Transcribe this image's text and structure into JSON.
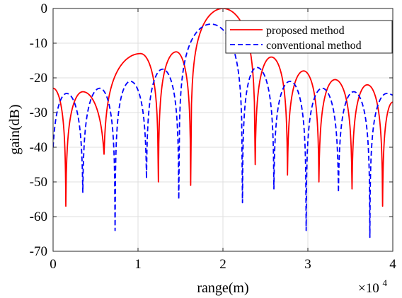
{
  "chart_data": {
    "type": "line",
    "title": "",
    "xlabel": "range(m)",
    "ylabel": "gain(dB)",
    "x_multiplier_label": {
      "base": "×10",
      "exponent": "4"
    },
    "xlim": [
      0,
      40000
    ],
    "ylim": [
      -70,
      0
    ],
    "x_ticks": [
      0,
      10000,
      20000,
      30000,
      40000
    ],
    "x_tick_labels": [
      "0",
      "1",
      "2",
      "3",
      "4"
    ],
    "y_ticks": [
      0,
      -10,
      -20,
      -30,
      -40,
      -50,
      -60,
      -70
    ],
    "y_tick_labels": [
      "0",
      "-10",
      "-20",
      "-30",
      "-40",
      "-50",
      "-60",
      "-70"
    ],
    "grid": true,
    "legend_position": "top-right",
    "series": [
      {
        "name": "proposed method",
        "color": "#ff0000",
        "style": "solid",
        "lobes": [
          {
            "x0": 0,
            "x1": 1500,
            "peak_x": 0,
            "peak": -23,
            "left_end": -23,
            "right_end": -57
          },
          {
            "x0": 1500,
            "x1": 6000,
            "peak_x": 3500,
            "peak": -24,
            "left_end": -57,
            "right_end": -42
          },
          {
            "x0": 6000,
            "x1": 12400,
            "peak_x": 10300,
            "peak": -13,
            "left_end": -42,
            "right_end": -50
          },
          {
            "x0": 12400,
            "x1": 16200,
            "peak_x": 14500,
            "peak": -12.5,
            "left_end": -50,
            "right_end": -51
          },
          {
            "x0": 16200,
            "x1": 23800,
            "peak_x": 20000,
            "peak": 0,
            "left_end": -51,
            "right_end": -45
          },
          {
            "x0": 23800,
            "x1": 27600,
            "peak_x": 25700,
            "peak": -14,
            "left_end": -45,
            "right_end": -48
          },
          {
            "x0": 27600,
            "x1": 31300,
            "peak_x": 29500,
            "peak": -18,
            "left_end": -48,
            "right_end": -50
          },
          {
            "x0": 31300,
            "x1": 35200,
            "peak_x": 33200,
            "peak": -20.5,
            "left_end": -50,
            "right_end": -52
          },
          {
            "x0": 35200,
            "x1": 38800,
            "peak_x": 37000,
            "peak": -22,
            "left_end": -52,
            "right_end": -57
          },
          {
            "x0": 38800,
            "x1": 40000,
            "peak_x": 40000,
            "peak": -27,
            "left_end": -57,
            "right_end": -27
          }
        ]
      },
      {
        "name": "conventional method",
        "color": "#0000ff",
        "style": "dashed",
        "lobes": [
          {
            "x0": 0,
            "x1": 3500,
            "peak_x": 1600,
            "peak": -24.5,
            "left_end": -40,
            "right_end": -53
          },
          {
            "x0": 3500,
            "x1": 7300,
            "peak_x": 5500,
            "peak": -23,
            "left_end": -53,
            "right_end": -64
          },
          {
            "x0": 7300,
            "x1": 11000,
            "peak_x": 9100,
            "peak": -21,
            "left_end": -64,
            "right_end": -49
          },
          {
            "x0": 11000,
            "x1": 14800,
            "peak_x": 12900,
            "peak": -17.5,
            "left_end": -49,
            "right_end": -55
          },
          {
            "x0": 14800,
            "x1": 22300,
            "peak_x": 18600,
            "peak": -4.5,
            "left_end": -55,
            "right_end": -56
          },
          {
            "x0": 22300,
            "x1": 26000,
            "peak_x": 24000,
            "peak": -17,
            "left_end": -56,
            "right_end": -52
          },
          {
            "x0": 26000,
            "x1": 29800,
            "peak_x": 27900,
            "peak": -21,
            "left_end": -52,
            "right_end": -64
          },
          {
            "x0": 29800,
            "x1": 33600,
            "peak_x": 31700,
            "peak": -23,
            "left_end": -64,
            "right_end": -53
          },
          {
            "x0": 33600,
            "x1": 37300,
            "peak_x": 35400,
            "peak": -24,
            "left_end": -53,
            "right_end": -66
          },
          {
            "x0": 37300,
            "x1": 40000,
            "peak_x": 39300,
            "peak": -24.5,
            "left_end": -66,
            "right_end": -25
          }
        ]
      }
    ]
  }
}
